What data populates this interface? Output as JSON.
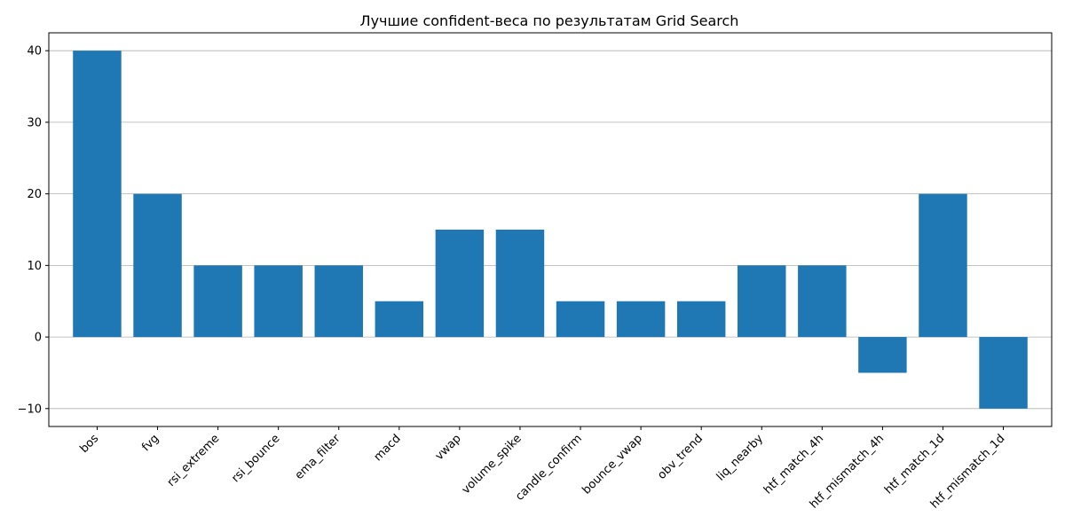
{
  "chart_data": {
    "type": "bar",
    "title": "Лучшие confident-веса по результатам Grid Search",
    "xlabel": "",
    "ylabel": "",
    "categories": [
      "bos",
      "fvg",
      "rsi_extreme",
      "rsi_bounce",
      "ema_filter",
      "macd",
      "vwap",
      "volume_spike",
      "candle_confirm",
      "bounce_vwap",
      "obv_trend",
      "liq_nearby",
      "htf_match_4h",
      "htf_mismatch_4h",
      "htf_match_1d",
      "htf_mismatch_1d"
    ],
    "values": [
      40,
      20,
      10,
      10,
      10,
      5,
      15,
      15,
      5,
      5,
      5,
      10,
      10,
      -5,
      20,
      -10
    ],
    "yticks": [
      -10,
      0,
      10,
      20,
      30,
      40
    ],
    "ylim": [
      -12.5,
      42.5
    ],
    "grid": "y",
    "bar_color": "#1f77b4",
    "x_tick_rotation": "45"
  }
}
